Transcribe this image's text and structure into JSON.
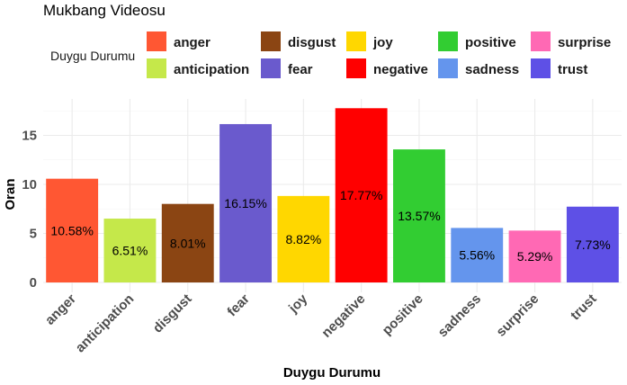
{
  "chart_data": {
    "type": "bar",
    "title": "Mukbang Videosu",
    "xlabel": "Duygu Durumu",
    "ylabel": "Oran",
    "legend_title": "Duygu Durumu",
    "legend_position": "top",
    "grid": true,
    "ylim": [
      0,
      18.6
    ],
    "yticks": [
      0,
      5,
      10,
      15
    ],
    "categories": [
      "anger",
      "anticipation",
      "disgust",
      "fear",
      "joy",
      "negative",
      "positive",
      "sadness",
      "surprise",
      "trust"
    ],
    "values": [
      10.58,
      6.51,
      8.01,
      16.15,
      8.82,
      17.77,
      13.57,
      5.56,
      5.29,
      7.73
    ],
    "data_labels": [
      "10.58%",
      "6.51%",
      "8.01%",
      "16.15%",
      "8.82%",
      "17.77%",
      "13.57%",
      "5.56%",
      "5.29%",
      "7.73%"
    ],
    "colors": [
      "#FF5733",
      "#C5E84A",
      "#8B4513",
      "#6A5ACD",
      "#FFD700",
      "#FF0000",
      "#32CD32",
      "#6495ED",
      "#FF69B4",
      "#5E50E6"
    ]
  }
}
